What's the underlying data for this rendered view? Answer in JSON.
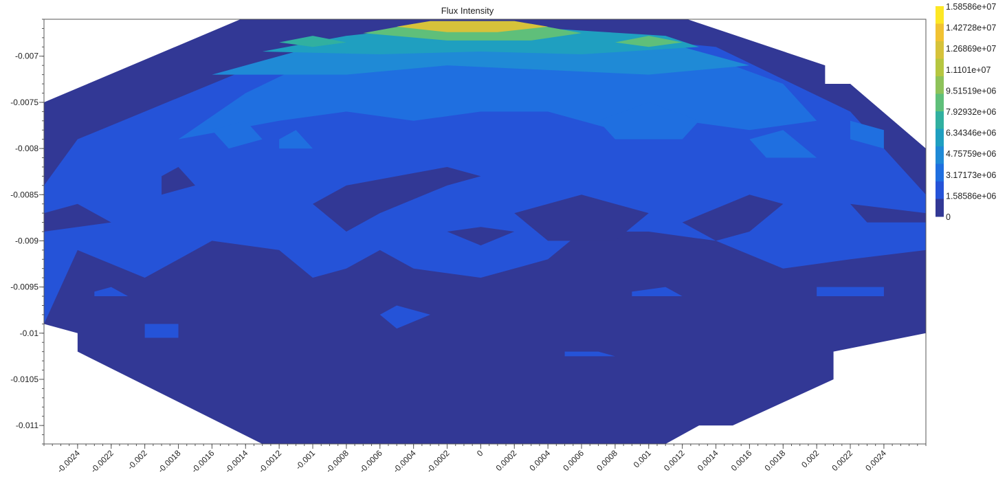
{
  "chart_data": {
    "type": "heatmap",
    "title": "Flux Intensity",
    "xlabel": "",
    "ylabel": "",
    "xlim": [
      -0.0026,
      0.00265
    ],
    "ylim": [
      -0.0112,
      -0.0066
    ],
    "x_ticks": [
      -0.0024,
      -0.0022,
      -0.002,
      -0.0018,
      -0.0016,
      -0.0014,
      -0.0012,
      -0.001,
      -0.0008,
      -0.0006,
      -0.0004,
      -0.0002,
      0,
      0.0002,
      0.0004,
      0.0006,
      0.0008,
      0.001,
      0.0012,
      0.0014,
      0.0016,
      0.0018,
      0.002,
      0.0022,
      0.0024
    ],
    "x_tick_labels": [
      "-0.0024",
      "-0.0022",
      "-0.002",
      "-0.0018",
      "-0.0016",
      "-0.0014",
      "-0.0012",
      "-0.001",
      "-0.0008",
      "-0.0006",
      "-0.0004",
      "-0.0002",
      "0",
      "0.0002",
      "0.0004",
      "0.0006",
      "0.0008",
      "0.001",
      "0.0012",
      "0.0014",
      "0.0016",
      "0.0018",
      "0.002",
      "0.0022",
      "0.0024"
    ],
    "y_ticks": [
      -0.007,
      -0.0075,
      -0.008,
      -0.0085,
      -0.009,
      -0.0095,
      -0.01,
      -0.0105,
      -0.011
    ],
    "y_tick_labels": [
      "-0.007",
      "-0.0075",
      "-0.008",
      "-0.0085",
      "-0.009",
      "-0.0095",
      "-0.01",
      "-0.0105",
      "-0.011"
    ],
    "colorbar": {
      "min": 0,
      "max": 15858600,
      "labels": [
        "1.58586e+07",
        "1.42728e+07",
        "1.26869e+07",
        "1.1101e+07",
        "9.51519e+06",
        "7.92932e+06",
        "6.34346e+06",
        "4.75759e+06",
        "3.17173e+06",
        "1.58586e+06",
        "0"
      ],
      "colors": [
        "#fde725",
        "#f1c232",
        "#d6c23a",
        "#b6c640",
        "#8ec25a",
        "#5fbf7a",
        "#31b0a0",
        "#1f9fc0",
        "#1f8ad6",
        "#1f6fe0",
        "#2553d8",
        "#323895"
      ]
    },
    "grid": false,
    "legend": "colorbar-right",
    "regions": [
      {
        "level": 1,
        "polygon": [
          [
            -0.0026,
            -0.0099
          ],
          [
            -0.0026,
            -0.0084
          ],
          [
            -0.0024,
            -0.0079
          ],
          [
            -0.002,
            -0.0076
          ],
          [
            -0.0012,
            -0.007
          ],
          [
            -0.0002,
            -0.00672
          ],
          [
            0.0004,
            -0.00672
          ],
          [
            0.0014,
            -0.0069
          ],
          [
            0.0022,
            -0.0076
          ],
          [
            0.00265,
            -0.0085
          ],
          [
            0.00265,
            -0.0091
          ],
          [
            0.0022,
            -0.0092
          ],
          [
            0.0018,
            -0.0093
          ],
          [
            0.0014,
            -0.009
          ],
          [
            0.001,
            -0.0089
          ],
          [
            0.0006,
            -0.0089
          ],
          [
            0.0004,
            -0.0092
          ],
          [
            0.0002,
            -0.0093
          ],
          [
            0.0,
            -0.0094
          ],
          [
            -0.0002,
            -0.00935
          ],
          [
            -0.0004,
            -0.0093
          ],
          [
            -0.0006,
            -0.0091
          ],
          [
            -0.0008,
            -0.0093
          ],
          [
            -0.001,
            -0.0094
          ],
          [
            -0.0012,
            -0.0091
          ],
          [
            -0.0016,
            -0.009
          ],
          [
            -0.002,
            -0.0094
          ],
          [
            -0.0024,
            -0.0091
          ]
        ]
      },
      {
        "level": 2,
        "polygon": [
          [
            -0.0018,
            -0.0079
          ],
          [
            -0.0014,
            -0.0074
          ],
          [
            -0.001,
            -0.00705
          ],
          [
            -0.0004,
            -0.00676
          ],
          [
            0.0004,
            -0.00676
          ],
          [
            0.0012,
            -0.0069
          ],
          [
            0.0018,
            -0.0073
          ],
          [
            0.002,
            -0.0077
          ],
          [
            0.0016,
            -0.0078
          ],
          [
            0.0012,
            -0.0077
          ],
          [
            0.0008,
            -0.0078
          ],
          [
            0.0004,
            -0.0076
          ],
          [
            0.0,
            -0.0076
          ],
          [
            -0.0004,
            -0.0077
          ],
          [
            -0.0008,
            -0.0076
          ],
          [
            -0.0012,
            -0.0077
          ]
        ]
      },
      {
        "level": 3,
        "polygon": [
          [
            -0.0016,
            -0.0072
          ],
          [
            -0.0012,
            -0.007
          ],
          [
            -0.0008,
            -0.0068
          ],
          [
            -0.0004,
            -0.0067
          ],
          [
            0.0004,
            -0.0067
          ],
          [
            0.001,
            -0.0068
          ],
          [
            0.0016,
            -0.0071
          ],
          [
            0.001,
            -0.0072
          ],
          [
            0.0004,
            -0.00715
          ],
          [
            -0.0002,
            -0.0071
          ],
          [
            -0.0008,
            -0.0072
          ]
        ]
      },
      {
        "level": 4,
        "polygon": [
          [
            -0.0013,
            -0.00695
          ],
          [
            -0.0008,
            -0.00678
          ],
          [
            -0.0004,
            -0.0067
          ],
          [
            0.0004,
            -0.0067
          ],
          [
            0.0011,
            -0.00678
          ],
          [
            0.0013,
            -0.0069
          ],
          [
            0.0006,
            -0.00698
          ],
          [
            0.0,
            -0.00695
          ],
          [
            -0.0006,
            -0.00698
          ]
        ]
      },
      {
        "level": 6,
        "polygon": [
          [
            -0.0007,
            -0.00675
          ],
          [
            -0.0004,
            -0.00665
          ],
          [
            0.0003,
            -0.00665
          ],
          [
            0.0006,
            -0.00675
          ],
          [
            0.0003,
            -0.00683
          ],
          [
            -0.0002,
            -0.00683
          ]
        ]
      },
      {
        "level": 9,
        "polygon": [
          [
            -0.0005,
            -0.00668
          ],
          [
            -0.0003,
            -0.00662
          ],
          [
            0.0002,
            -0.00662
          ],
          [
            0.0004,
            -0.00668
          ],
          [
            0.0001,
            -0.00674
          ],
          [
            -0.0002,
            -0.00674
          ]
        ]
      },
      {
        "level": 6,
        "polygon": [
          [
            0.0008,
            -0.00685
          ],
          [
            0.001,
            -0.00678
          ],
          [
            0.0012,
            -0.00685
          ],
          [
            0.001,
            -0.0069
          ]
        ]
      },
      {
        "level": 5,
        "polygon": [
          [
            -0.0012,
            -0.00685
          ],
          [
            -0.001,
            -0.00678
          ],
          [
            -0.0008,
            -0.00685
          ],
          [
            -0.001,
            -0.0069
          ]
        ]
      },
      {
        "level": 2,
        "polygon": [
          [
            0.0007,
            -0.0077
          ],
          [
            0.001,
            -0.0075
          ],
          [
            0.0013,
            -0.0077
          ],
          [
            0.0012,
            -0.0079
          ],
          [
            0.0008,
            -0.0079
          ]
        ]
      },
      {
        "level": 2,
        "polygon": [
          [
            -0.0016,
            -0.0078
          ],
          [
            -0.0014,
            -0.0077
          ],
          [
            -0.0013,
            -0.0079
          ],
          [
            -0.0015,
            -0.008
          ]
        ]
      },
      {
        "level": 2,
        "polygon": [
          [
            -0.0012,
            -0.0079
          ],
          [
            -0.0011,
            -0.0078
          ],
          [
            -0.001,
            -0.008
          ],
          [
            -0.0012,
            -0.008
          ]
        ]
      },
      {
        "level": 2,
        "polygon": [
          [
            0.0016,
            -0.0079
          ],
          [
            0.0018,
            -0.0078
          ],
          [
            0.002,
            -0.0081
          ],
          [
            0.0017,
            -0.0081
          ]
        ]
      },
      {
        "level": 2,
        "polygon": [
          [
            0.0022,
            -0.0077
          ],
          [
            0.0024,
            -0.0078
          ],
          [
            0.0024,
            -0.008
          ],
          [
            0.0022,
            -0.0079
          ]
        ]
      },
      {
        "level": 0,
        "polygon": [
          [
            -0.0002,
            -0.0082
          ],
          [
            0.0,
            -0.0083
          ],
          [
            -0.0002,
            -0.0084
          ],
          [
            -0.0006,
            -0.0087
          ],
          [
            -0.0008,
            -0.0089
          ],
          [
            -0.001,
            -0.0086
          ],
          [
            -0.0008,
            -0.0084
          ]
        ]
      },
      {
        "level": 0,
        "polygon": [
          [
            0.0002,
            -0.0087
          ],
          [
            0.0006,
            -0.0085
          ],
          [
            0.001,
            -0.0087
          ],
          [
            0.0008,
            -0.009
          ],
          [
            0.0004,
            -0.009
          ]
        ]
      },
      {
        "level": 0,
        "polygon": [
          [
            0.0012,
            -0.0088
          ],
          [
            0.0016,
            -0.0085
          ],
          [
            0.0018,
            -0.0086
          ],
          [
            0.0016,
            -0.0089
          ],
          [
            0.0014,
            -0.009
          ]
        ]
      },
      {
        "level": 0,
        "polygon": [
          [
            -0.0019,
            -0.0083
          ],
          [
            -0.0018,
            -0.0082
          ],
          [
            -0.0017,
            -0.0084
          ],
          [
            -0.0019,
            -0.0085
          ]
        ]
      },
      {
        "level": 0,
        "polygon": [
          [
            0.0022,
            -0.0086
          ],
          [
            0.00265,
            -0.0087
          ],
          [
            0.00265,
            -0.0088
          ],
          [
            0.0023,
            -0.0088
          ]
        ]
      },
      {
        "level": 0,
        "polygon": [
          [
            -0.0026,
            -0.0087
          ],
          [
            -0.0024,
            -0.0086
          ],
          [
            -0.0022,
            -0.0088
          ],
          [
            -0.0026,
            -0.0089
          ]
        ]
      },
      {
        "level": 0,
        "polygon": [
          [
            -0.0002,
            -0.0089
          ],
          [
            0.0,
            -0.00885
          ],
          [
            0.0002,
            -0.0089
          ],
          [
            0.0,
            -0.00905
          ]
        ]
      },
      {
        "level": 1,
        "polygon": [
          [
            -0.002,
            -0.0099
          ],
          [
            -0.0018,
            -0.0099
          ],
          [
            -0.0018,
            -0.01005
          ],
          [
            -0.002,
            -0.01005
          ]
        ]
      },
      {
        "level": 1,
        "polygon": [
          [
            -0.0006,
            -0.0098
          ],
          [
            -0.0005,
            -0.0097
          ],
          [
            -0.0003,
            -0.0098
          ],
          [
            -0.0005,
            -0.00995
          ]
        ]
      },
      {
        "level": 1,
        "polygon": [
          [
            0.002,
            -0.0095
          ],
          [
            0.0024,
            -0.0095
          ],
          [
            0.0024,
            -0.0096
          ],
          [
            0.002,
            -0.0096
          ]
        ]
      },
      {
        "level": 1,
        "polygon": [
          [
            0.0009,
            -0.00955
          ],
          [
            0.0011,
            -0.0095
          ],
          [
            0.0012,
            -0.0096
          ],
          [
            0.0009,
            -0.0096
          ]
        ]
      },
      {
        "level": 1,
        "polygon": [
          [
            -0.0023,
            -0.00955
          ],
          [
            -0.0022,
            -0.0095
          ],
          [
            -0.0021,
            -0.0096
          ],
          [
            -0.0023,
            -0.0096
          ]
        ]
      },
      {
        "level": 1,
        "polygon": [
          [
            0.0005,
            -0.0102
          ],
          [
            0.0007,
            -0.0102
          ],
          [
            0.0008,
            -0.01025
          ],
          [
            0.0005,
            -0.01025
          ]
        ]
      }
    ]
  }
}
